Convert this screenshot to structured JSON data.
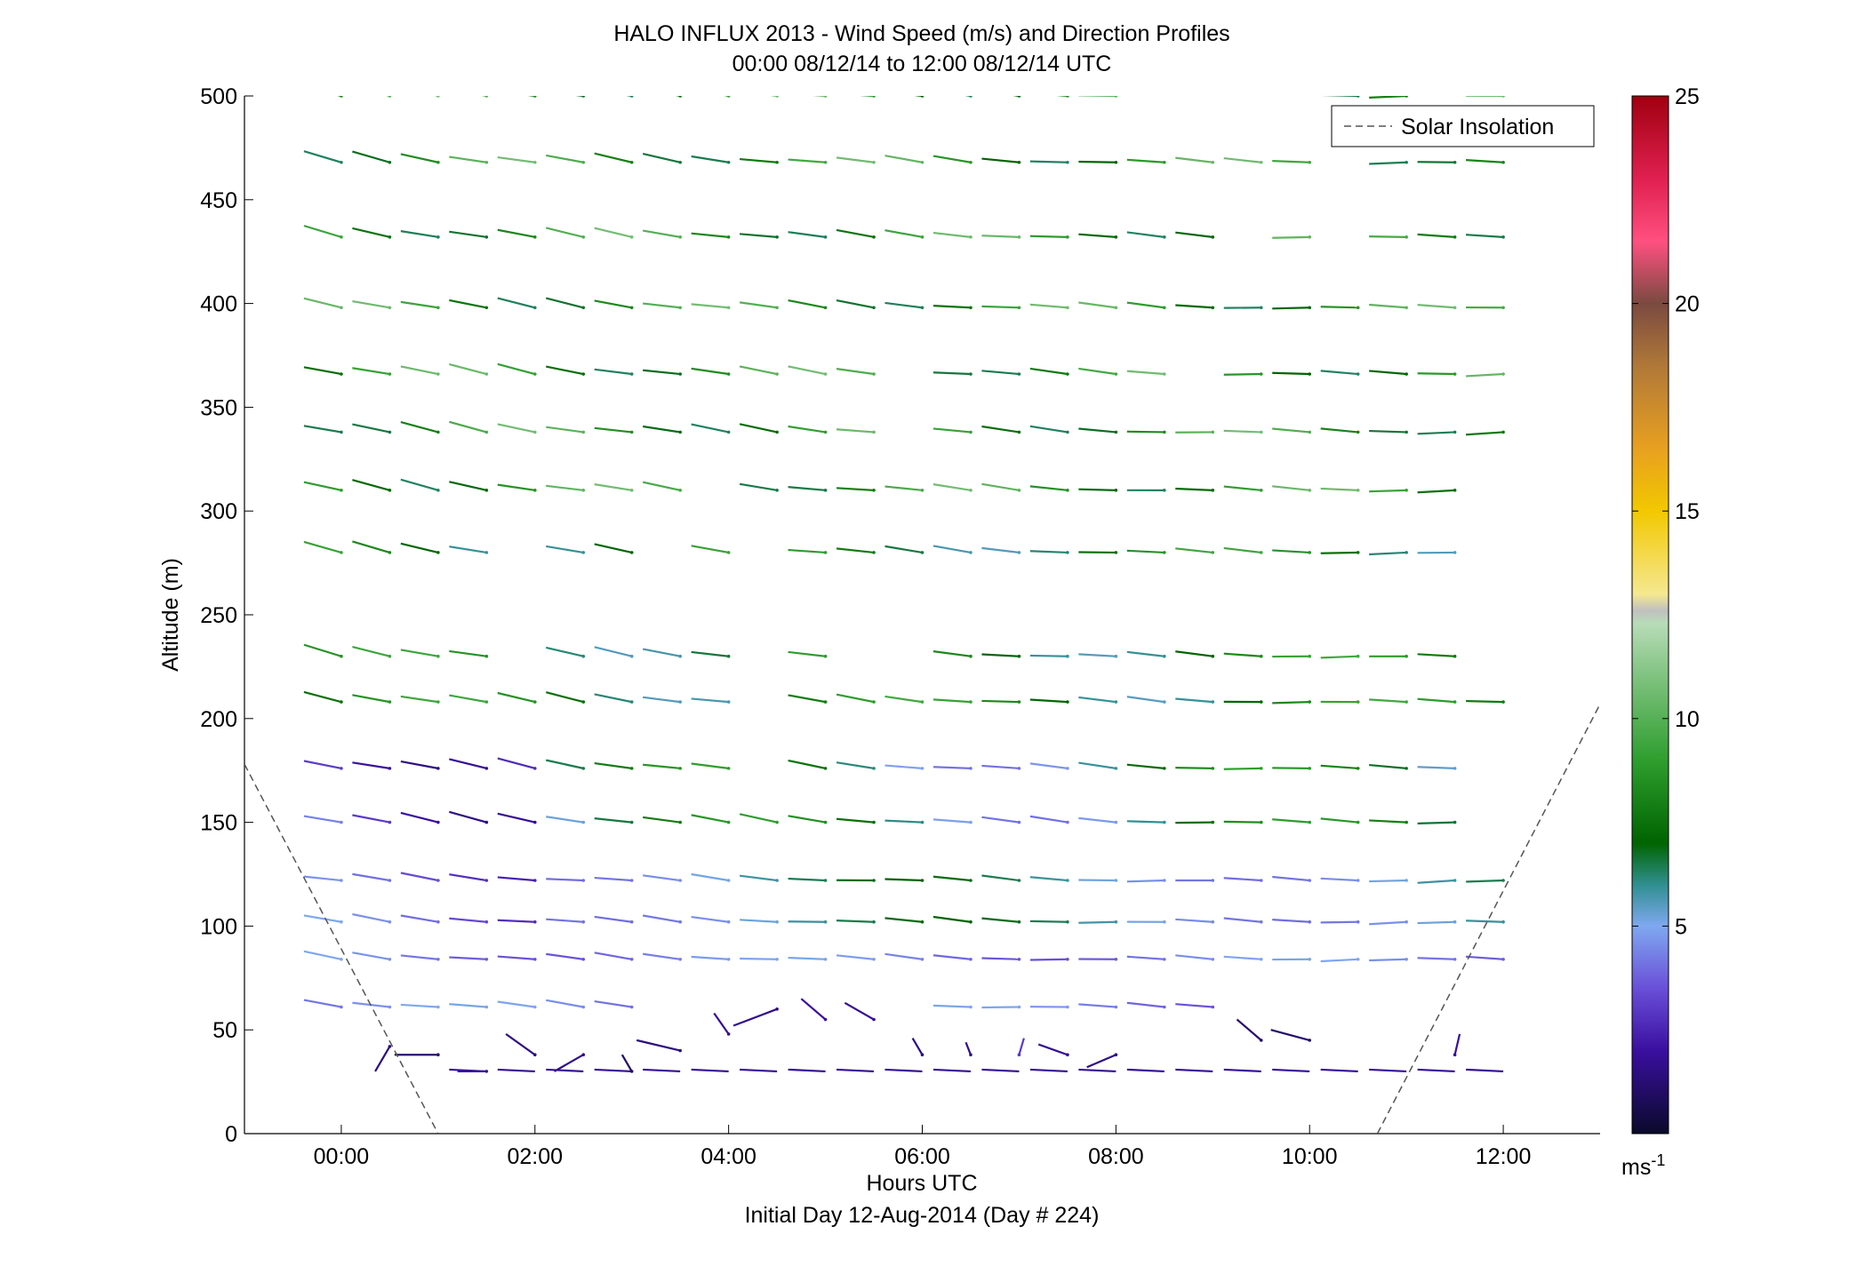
{
  "figure": {
    "title_line1": "HALO INFLUX 2013 - Wind Speed (m/s) and Direction Profiles",
    "title_line2": "00:00 08/12/14 to 12:00 08/12/14  UTC",
    "footer": "Initial Day 12-Aug-2014 (Day # 224)"
  },
  "chart_data": {
    "type": "vector-profile",
    "xlabel": "Hours UTC",
    "ylabel": "Altitude (m)",
    "xlim": [
      -1,
      13
    ],
    "ylim": [
      0,
      500
    ],
    "x_ticks": [
      0,
      2,
      4,
      6,
      8,
      10,
      12
    ],
    "x_tick_labels": [
      "00:00",
      "02:00",
      "04:00",
      "06:00",
      "08:00",
      "10:00",
      "12:00"
    ],
    "y_ticks": [
      0,
      50,
      100,
      150,
      200,
      250,
      300,
      350,
      400,
      450,
      500
    ],
    "y_tick_labels": [
      "0",
      "50",
      "100",
      "150",
      "200",
      "250",
      "300",
      "350",
      "400",
      "450",
      "500"
    ],
    "grid": false,
    "legend": {
      "placement": "top-right",
      "entries": [
        {
          "label": "Solar Insolation",
          "style": "dashed",
          "color": "#555555"
        }
      ]
    },
    "colorbar": {
      "min": 0,
      "max": 25,
      "ticks": [
        5,
        10,
        15,
        20,
        25
      ],
      "tick_labels": [
        "5",
        "10",
        "15",
        "20",
        "25"
      ],
      "unit": "ms",
      "unit_exp": "-1",
      "stops": [
        {
          "v": 0,
          "c": "#0a0a2a"
        },
        {
          "v": 2,
          "c": "#3a0fa0"
        },
        {
          "v": 3.5,
          "c": "#6a4fd8"
        },
        {
          "v": 5,
          "c": "#7fa8f0"
        },
        {
          "v": 6,
          "c": "#2f8f8f"
        },
        {
          "v": 7,
          "c": "#006400"
        },
        {
          "v": 9,
          "c": "#2e9e2e"
        },
        {
          "v": 11,
          "c": "#7fc27f"
        },
        {
          "v": 12.3,
          "c": "#b8dcb8"
        },
        {
          "v": 12.6,
          "c": "#c0c0c0"
        },
        {
          "v": 13,
          "c": "#f5e890"
        },
        {
          "v": 15,
          "c": "#f2c800"
        },
        {
          "v": 16.5,
          "c": "#e8a020"
        },
        {
          "v": 18.5,
          "c": "#b07838"
        },
        {
          "v": 20,
          "c": "#7a4a40"
        },
        {
          "v": 21.5,
          "c": "#ff5080"
        },
        {
          "v": 23,
          "c": "#e02050"
        },
        {
          "v": 25,
          "c": "#a00010"
        }
      ]
    },
    "solar_insolation": [
      [
        [
          -1,
          178
        ],
        [
          1,
          0
        ]
      ],
      [
        [
          10.7,
          0
        ],
        [
          13,
          207
        ]
      ]
    ],
    "upper_level_vectors": {
      "altitudes": [
        500,
        468,
        432,
        398,
        366,
        338,
        310,
        280,
        230,
        208,
        176,
        150,
        122,
        102,
        84,
        61
      ],
      "times": [
        0,
        0.5,
        1,
        1.5,
        2,
        2.5,
        3,
        3.5,
        4,
        4.5,
        5,
        5.5,
        6,
        6.5,
        7,
        7.5,
        8,
        8.5,
        9,
        9.5,
        10,
        10.5,
        11,
        11.5,
        12
      ]
    },
    "near_surface_vectors": [
      {
        "t": 0.5,
        "z": 42,
        "dx": -0.15,
        "dz": -12,
        "s": 1.5
      },
      {
        "t": 1.0,
        "z": 38,
        "dx": -0.45,
        "dz": 0,
        "s": 1.2
      },
      {
        "t": 1.5,
        "z": 30,
        "dx": -0.3,
        "dz": 0,
        "s": 2.0
      },
      {
        "t": 2.0,
        "z": 38,
        "dx": -0.3,
        "dz": 10,
        "s": 1.5
      },
      {
        "t": 2.5,
        "z": 38,
        "dx": -0.3,
        "dz": -8,
        "s": 1.6
      },
      {
        "t": 3.0,
        "z": 30,
        "dx": -0.1,
        "dz": 8,
        "s": 1.0
      },
      {
        "t": 3.5,
        "z": 40,
        "dx": -0.45,
        "dz": 5,
        "s": 1.4
      },
      {
        "t": 4.0,
        "z": 48,
        "dx": -0.15,
        "dz": 10,
        "s": 1.8
      },
      {
        "t": 4.5,
        "z": 60,
        "dx": -0.45,
        "dz": -8,
        "s": 1.6
      },
      {
        "t": 5.0,
        "z": 55,
        "dx": -0.25,
        "dz": 10,
        "s": 2.0
      },
      {
        "t": 5.5,
        "z": 55,
        "dx": -0.3,
        "dz": 8,
        "s": 1.8
      },
      {
        "t": 6.0,
        "z": 38,
        "dx": -0.1,
        "dz": 8,
        "s": 1.5
      },
      {
        "t": 6.5,
        "z": 38,
        "dx": -0.05,
        "dz": 6,
        "s": 1.6
      },
      {
        "t": 7.0,
        "z": 38,
        "dx": 0.05,
        "dz": 8,
        "s": 3.0
      },
      {
        "t": 7.5,
        "z": 38,
        "dx": -0.3,
        "dz": 5,
        "s": 1.7
      },
      {
        "t": 8.0,
        "z": 38,
        "dx": -0.3,
        "dz": -6,
        "s": 1.5
      },
      {
        "t": 9.5,
        "z": 45,
        "dx": -0.25,
        "dz": 10,
        "s": 1.2
      },
      {
        "t": 10.0,
        "z": 45,
        "dx": -0.4,
        "dz": 5,
        "s": 1.1
      },
      {
        "t": 11.5,
        "z": 38,
        "dx": 0.05,
        "dz": 10,
        "s": 2.0
      }
    ]
  }
}
